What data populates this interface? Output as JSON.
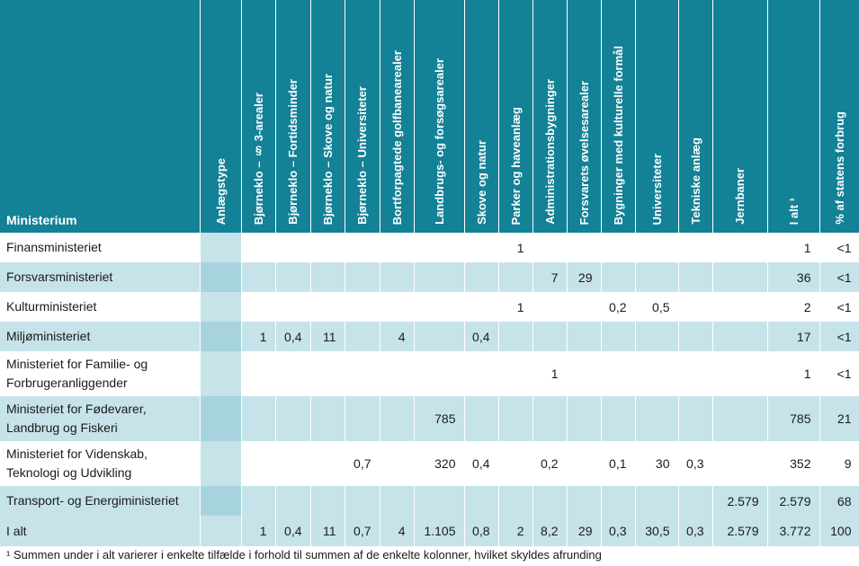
{
  "header": {
    "ministerium": "Ministerium",
    "anlaegstype": "Anlægstype",
    "columns": [
      "Bjørneklo – § 3-arealer",
      "Bjørneklo – Fortidsminder",
      "Bjørneklo – Skove og natur",
      "Bjørneklo – Universiteter",
      "Bortforpagtede golfbanearealer",
      "Landbrugs- og forsøgsarealer",
      "Skove og natur",
      "Parker og haveanlæg",
      "Administrationsbygninger",
      "Forsvarets øvelsesarealer",
      "Bygninger med kulturelle formål",
      "Universiteter",
      "Tekniske anlæg",
      "Jernbaner",
      "I alt ¹",
      "% af statens forbrug"
    ]
  },
  "rows": [
    {
      "label": "Finansministeriet",
      "cells": [
        "",
        "",
        "",
        "",
        "",
        "",
        "",
        "1",
        "",
        "",
        "",
        "",
        "",
        "",
        "1",
        "<1"
      ]
    },
    {
      "label": "Forsvarsministeriet",
      "cells": [
        "",
        "",
        "",
        "",
        "",
        "",
        "",
        "",
        "7",
        "29",
        "",
        "",
        "",
        "",
        "36",
        "<1"
      ]
    },
    {
      "label": "Kulturministeriet",
      "cells": [
        "",
        "",
        "",
        "",
        "",
        "",
        "",
        "1",
        "",
        "",
        "0,2",
        "0,5",
        "",
        "",
        "2",
        "<1"
      ]
    },
    {
      "label": "Miljøministeriet",
      "cells": [
        "1",
        "0,4",
        "11",
        "",
        "4",
        "",
        "0,4",
        "",
        "",
        "",
        "",
        "",
        "",
        "",
        "17",
        "<1"
      ]
    },
    {
      "label": "Ministeriet for Familie- og Forbrugeranliggender",
      "cells": [
        "",
        "",
        "",
        "",
        "",
        "",
        "",
        "",
        "1",
        "",
        "",
        "",
        "",
        "",
        "1",
        "<1"
      ]
    },
    {
      "label": "Ministeriet for Fødevarer, Landbrug og Fiskeri",
      "cells": [
        "",
        "",
        "",
        "",
        "",
        "785",
        "",
        "",
        "",
        "",
        "",
        "",
        "",
        "",
        "785",
        "21"
      ]
    },
    {
      "label": "Ministeriet for Videnskab, Teknologi og Udvikling",
      "cells": [
        "",
        "",
        "",
        "0,7",
        "",
        "320",
        "0,4",
        "",
        "0,2",
        "",
        "0,1",
        "30",
        "0,3",
        "",
        "352",
        "9"
      ]
    },
    {
      "label": "Transport- og Energiministeriet",
      "cells": [
        "",
        "",
        "",
        "",
        "",
        "",
        "",
        "",
        "",
        "",
        "",
        "",
        "",
        "2.579",
        "2.579",
        "68"
      ]
    },
    {
      "label": "I alt",
      "cells": [
        "1",
        "0,4",
        "11",
        "0,7",
        "4",
        "1.105",
        "0,8",
        "2",
        "8,2",
        "29",
        "0,3",
        "30,5",
        "0,3",
        "2.579",
        "3.772",
        "100"
      ]
    }
  ],
  "footnote": "¹ Summen under i alt varierer i enkelte tilfælde i forhold til summen af de enkelte kolonner, hvilket skyldes afrunding"
}
